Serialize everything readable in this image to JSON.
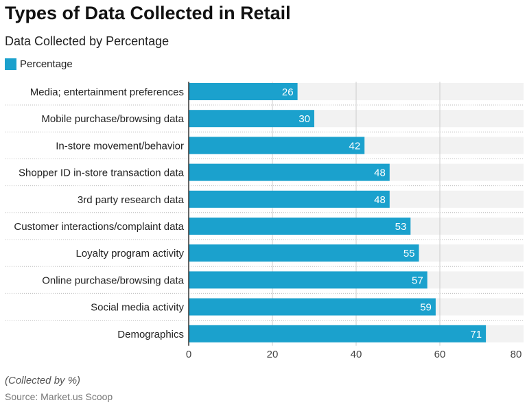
{
  "title": "Types of Data Collected in Retail",
  "subtitle": "Data Collected by Percentage",
  "note": "(Collected by %)",
  "source": "Source: Market.us Scoop",
  "colors": {
    "bar": "#1ba1cd",
    "track": "#f2f2f2",
    "grid": "#cccccc"
  },
  "chart_data": {
    "type": "bar",
    "orientation": "horizontal",
    "categories": [
      "Media; entertainment preferences",
      "Mobile purchase/browsing data",
      "In-store movement/behavior",
      "Shopper ID in-store transaction data",
      "3rd party research data",
      "Customer interactions/complaint data",
      "Loyalty program activity",
      "Online purchase/browsing data",
      "Social media activity",
      "Demographics"
    ],
    "series": [
      {
        "name": "Percentage",
        "values": [
          26,
          30,
          42,
          48,
          48,
          53,
          55,
          57,
          59,
          71
        ]
      }
    ],
    "xlim": [
      0,
      80
    ],
    "xticks": [
      "0",
      "20",
      "40",
      "60",
      "80"
    ],
    "grid": true,
    "legend": "top-left"
  }
}
